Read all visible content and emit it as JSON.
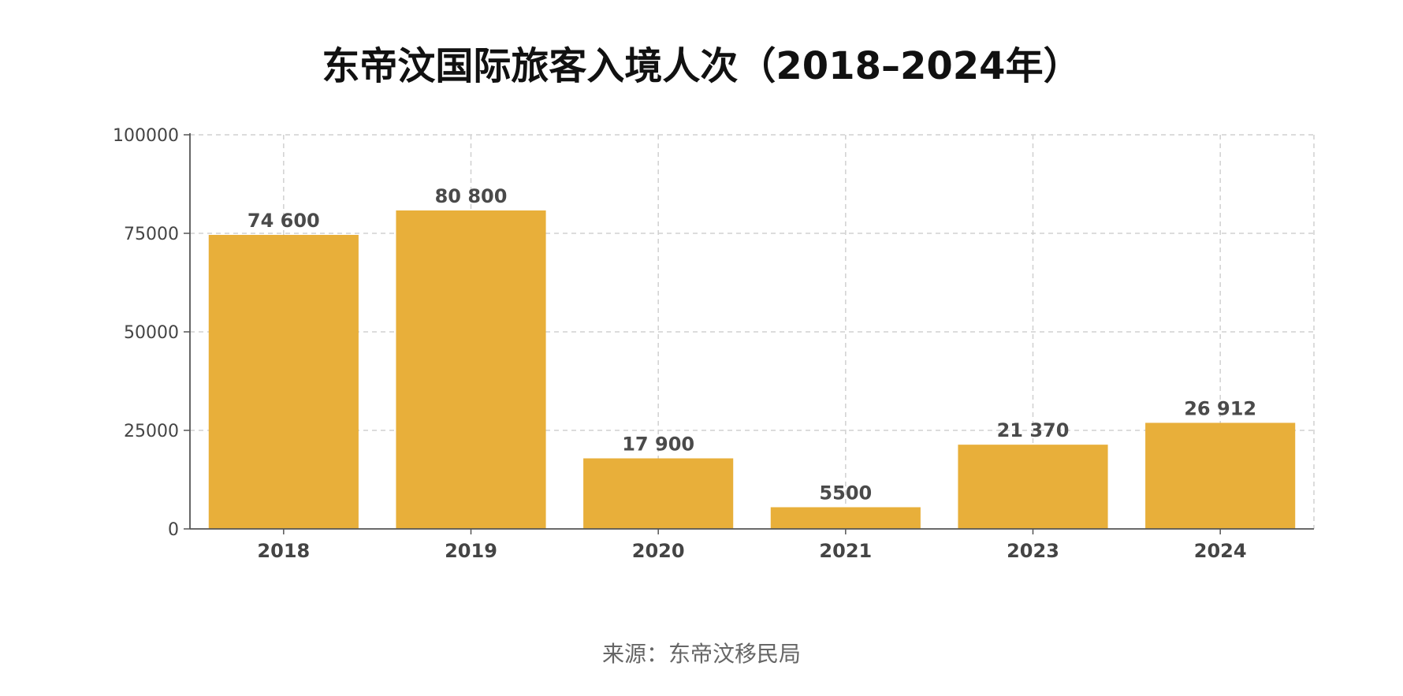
{
  "chart_data": {
    "type": "bar",
    "title": "东帝汶国际旅客入境人次（2018–2024年）",
    "categories": [
      "2018",
      "2019",
      "2020",
      "2021",
      "2023",
      "2024"
    ],
    "values": [
      74600,
      80800,
      17900,
      5500,
      21370,
      26912
    ],
    "value_labels": [
      "74 600",
      "80 800",
      "17 900",
      "5500",
      "21 370",
      "26 912"
    ],
    "xlabel": "",
    "ylabel": "",
    "ylim": [
      0,
      100000
    ],
    "yticks": [
      0,
      25000,
      50000,
      75000,
      100000
    ],
    "ytick_labels": [
      "0",
      "25000",
      "50000",
      "75000",
      "100000"
    ],
    "grid": true,
    "legend": "none",
    "bar_color": "#E8AF3A",
    "source": "来源：东帝汶移民局"
  }
}
